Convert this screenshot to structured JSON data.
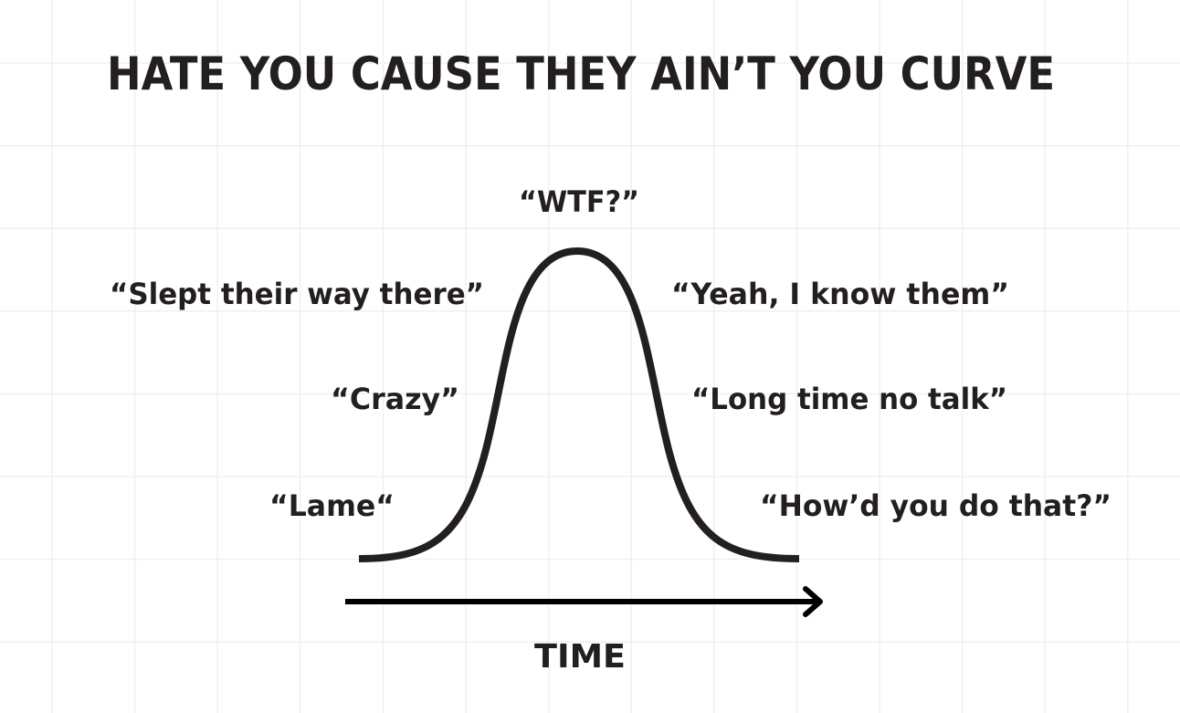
{
  "title": "HATE YOU CAUSE THEY AIN’T YOU CURVE",
  "axis_label": "TIME",
  "labels": {
    "peak": "“WTF?”",
    "left_top": "“Slept their way there”",
    "left_mid": "“Crazy”",
    "left_low": "“Lame“",
    "right_top": "“Yeah, I know them”",
    "right_mid": "“Long time no talk”",
    "right_low": "“How’d you do that?”"
  },
  "colors": {
    "ink": "#231f20",
    "grid": "#f0f0f0",
    "background": "#ffffff"
  }
}
